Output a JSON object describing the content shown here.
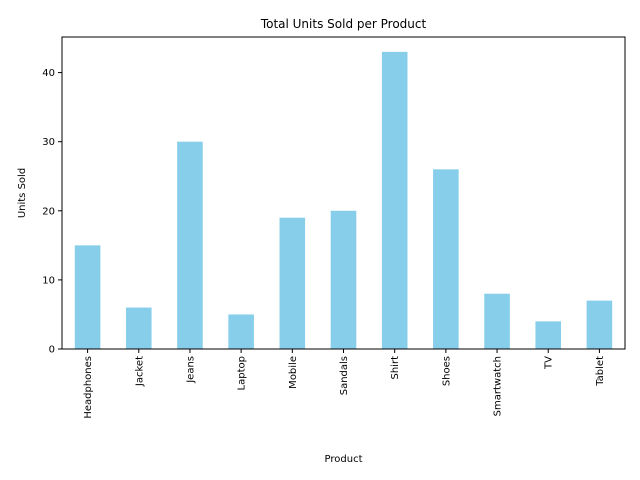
{
  "chart_data": {
    "type": "bar",
    "title": "Total Units Sold per Product",
    "xlabel": "Product",
    "ylabel": "Units Sold",
    "categories": [
      "Headphones",
      "Jacket",
      "Jeans",
      "Laptop",
      "Mobile",
      "Sandals",
      "Shirt",
      "Shoes",
      "Smartwatch",
      "TV",
      "Tablet"
    ],
    "values": [
      15,
      6,
      30,
      5,
      19,
      20,
      43,
      26,
      8,
      4,
      7
    ],
    "ylim": [
      0,
      45.15
    ],
    "yticks": [
      0,
      10,
      20,
      30,
      40
    ],
    "grid": false,
    "legend": "none",
    "bar_color": "#87ceeb"
  }
}
